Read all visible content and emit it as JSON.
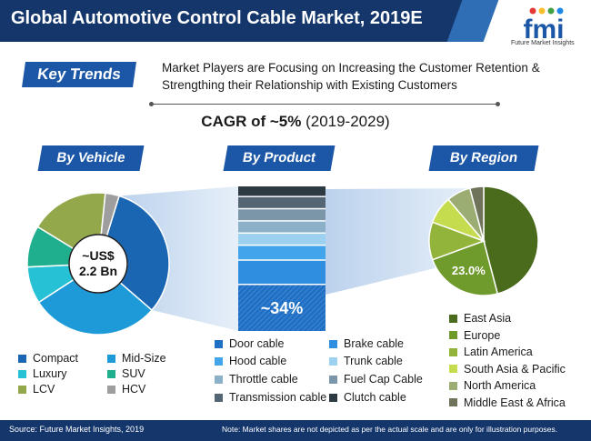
{
  "header": {
    "title": "Global Automotive Control Cable Market, 2019E"
  },
  "logo": {
    "letters": "fmi",
    "tagline": "Future Market Insights",
    "colors": [
      "#e53935",
      "#fbc02d",
      "#43a047",
      "#1e88e5"
    ]
  },
  "key_trends": {
    "label": "Key Trends",
    "line1": "Market Players are Focusing on Increasing the Customer Retention &",
    "line2": "Strengthing their Relationship with Existing Customers"
  },
  "cagr": {
    "bold": "CAGR of ~5%",
    "period": "(2019-2029)"
  },
  "colors": {
    "header_bg": "#14366b",
    "accent": "#1b57a6"
  },
  "chart_data": [
    {
      "type": "pie",
      "section": "By Vehicle",
      "center_label_line1": "~US$",
      "center_label_line2": "2.2 Bn",
      "series": [
        {
          "name": "Compact",
          "value": 30,
          "color": "#1b66b3"
        },
        {
          "name": "Mid-Size",
          "value": 28,
          "color": "#1f9ad8"
        },
        {
          "name": "Luxury",
          "value": 8,
          "color": "#27c1d6"
        },
        {
          "name": "SUV",
          "value": 9,
          "color": "#1fae8e"
        },
        {
          "name": "LCV",
          "value": 17,
          "color": "#92a84a"
        },
        {
          "name": "HCV",
          "value": 3,
          "color": "#9e9e9e"
        }
      ]
    },
    {
      "type": "bar",
      "section": "By Product",
      "highlight_label": "~34%",
      "series": [
        {
          "name": "Door cable",
          "value": 34,
          "color": "#1f6fc4"
        },
        {
          "name": "Brake cable",
          "value": 17,
          "color": "#2f8ee0"
        },
        {
          "name": "Hood cable",
          "value": 10,
          "color": "#42a5ec"
        },
        {
          "name": "Trunk cable",
          "value": 8,
          "color": "#9cd1ef"
        },
        {
          "name": "Throttle cable",
          "value": 8,
          "color": "#8bb0c7"
        },
        {
          "name": "Fuel Cap Cable",
          "value": 8,
          "color": "#7a96a8"
        },
        {
          "name": "Transmission cable",
          "value": 8,
          "color": "#546673"
        },
        {
          "name": "Clutch cable",
          "value": 7,
          "color": "#2e3a42"
        }
      ]
    },
    {
      "type": "pie",
      "section": "By Region",
      "data_label": "23.0%",
      "series": [
        {
          "name": "East Asia",
          "value": 45,
          "color": "#4a6b1c"
        },
        {
          "name": "Europe",
          "value": 23,
          "color": "#6f9a2c"
        },
        {
          "name": "Latin America",
          "value": 11,
          "color": "#93b43a"
        },
        {
          "name": "South Asia & Pacific",
          "value": 8,
          "color": "#c4dc4e"
        },
        {
          "name": "North America",
          "value": 7,
          "color": "#9cad74"
        },
        {
          "name": "Middle East & Africa",
          "value": 4,
          "color": "#6e7359"
        }
      ]
    }
  ],
  "footer": {
    "source": "Source: Future Market Insights, 2019",
    "note": "Note: Market shares are not depicted as per the actual scale and are only for illustration purposes."
  }
}
